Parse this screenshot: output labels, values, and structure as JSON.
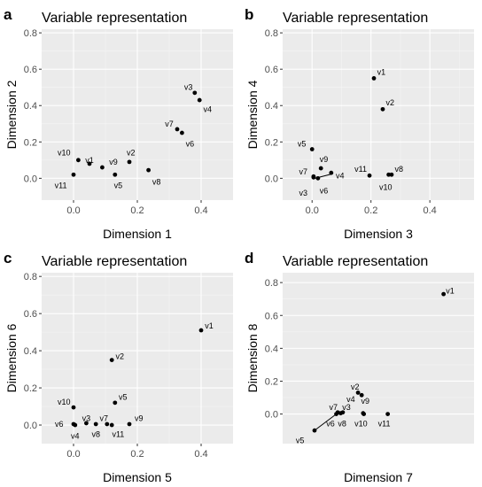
{
  "chart_data": [
    {
      "type": "scatter",
      "letter": "a",
      "title": "Variable representation",
      "xlabel": "Dimension 1",
      "ylabel": "Dimension 2",
      "xlim": [
        -0.1,
        0.5
      ],
      "ylim": [
        -0.12,
        0.82
      ],
      "xticks": [
        0.0,
        0.2,
        0.4
      ],
      "xtick_labels": [
        "0.0",
        "0.2",
        "0.4"
      ],
      "yticks": [
        0.0,
        0.2,
        0.4,
        0.6,
        0.8
      ],
      "ytick_labels": [
        "0.0",
        "0.2",
        "0.4",
        "0.6",
        "0.8"
      ],
      "grid": true,
      "points": [
        {
          "label": "v1",
          "x": 0.05,
          "y": 0.08,
          "lx": 0.05,
          "ly": 0.1
        },
        {
          "label": "v2",
          "x": 0.175,
          "y": 0.09,
          "lx": 0.18,
          "ly": 0.14
        },
        {
          "label": "v3",
          "x": 0.38,
          "y": 0.47,
          "lx": 0.36,
          "ly": 0.5
        },
        {
          "label": "v4",
          "x": 0.395,
          "y": 0.43,
          "lx": 0.42,
          "ly": 0.38
        },
        {
          "label": "v5",
          "x": 0.13,
          "y": 0.02,
          "lx": 0.14,
          "ly": -0.04
        },
        {
          "label": "v6",
          "x": 0.34,
          "y": 0.25,
          "lx": 0.365,
          "ly": 0.19
        },
        {
          "label": "v7",
          "x": 0.325,
          "y": 0.27,
          "lx": 0.3,
          "ly": 0.3
        },
        {
          "label": "v8",
          "x": 0.235,
          "y": 0.045,
          "lx": 0.26,
          "ly": -0.02
        },
        {
          "label": "v9",
          "x": 0.09,
          "y": 0.06,
          "lx": 0.125,
          "ly": 0.09
        },
        {
          "label": "v10",
          "x": 0.015,
          "y": 0.1,
          "lx": -0.03,
          "ly": 0.14
        },
        {
          "label": "v11",
          "x": 0.0,
          "y": 0.02,
          "lx": -0.04,
          "ly": -0.04
        }
      ],
      "leaders": []
    },
    {
      "type": "scatter",
      "letter": "b",
      "title": "Variable representation",
      "xlabel": "Dimension 3",
      "ylabel": "Dimension 4",
      "xlim": [
        -0.1,
        0.55
      ],
      "ylim": [
        -0.12,
        0.82
      ],
      "xticks": [
        0.0,
        0.2,
        0.4
      ],
      "xtick_labels": [
        "0.0",
        "0.2",
        "0.4"
      ],
      "yticks": [
        0.0,
        0.2,
        0.4,
        0.6,
        0.8
      ],
      "ytick_labels": [
        "0.0",
        "0.2",
        "0.4",
        "0.6",
        "0.8"
      ],
      "grid": true,
      "points": [
        {
          "label": "v1",
          "x": 0.21,
          "y": 0.55,
          "lx": 0.235,
          "ly": 0.585
        },
        {
          "label": "v2",
          "x": 0.24,
          "y": 0.38,
          "lx": 0.265,
          "ly": 0.415
        },
        {
          "label": "v3",
          "x": 0.005,
          "y": 0.005,
          "lx": -0.03,
          "ly": -0.08
        },
        {
          "label": "v4",
          "x": 0.065,
          "y": 0.03,
          "lx": 0.095,
          "ly": 0.015
        },
        {
          "label": "v5",
          "x": 0.0,
          "y": 0.16,
          "lx": -0.035,
          "ly": 0.19
        },
        {
          "label": "v6",
          "x": 0.02,
          "y": 0.0,
          "lx": 0.04,
          "ly": -0.07
        },
        {
          "label": "v7",
          "x": 0.005,
          "y": 0.01,
          "lx": -0.03,
          "ly": 0.035
        },
        {
          "label": "v8",
          "x": 0.27,
          "y": 0.02,
          "lx": 0.295,
          "ly": 0.05
        },
        {
          "label": "v9",
          "x": 0.03,
          "y": 0.055,
          "lx": 0.04,
          "ly": 0.105
        },
        {
          "label": "v10",
          "x": 0.26,
          "y": 0.02,
          "lx": 0.25,
          "ly": -0.05
        },
        {
          "label": "v11",
          "x": 0.195,
          "y": 0.015,
          "lx": 0.165,
          "ly": 0.05
        }
      ],
      "leaders": [
        {
          "x1": 0.01,
          "y1": 0.0,
          "x2": 0.07,
          "y2": 0.025
        }
      ]
    },
    {
      "type": "scatter",
      "letter": "c",
      "title": "Variable representation",
      "xlabel": "Dimension 5",
      "ylabel": "Dimension 6",
      "xlim": [
        -0.1,
        0.5
      ],
      "ylim": [
        -0.1,
        0.82
      ],
      "xticks": [
        0.0,
        0.2,
        0.4
      ],
      "xtick_labels": [
        "0.0",
        "0.2",
        "0.4"
      ],
      "yticks": [
        0.0,
        0.2,
        0.4,
        0.6,
        0.8
      ],
      "ytick_labels": [
        "0.0",
        "0.2",
        "0.4",
        "0.6",
        "0.8"
      ],
      "grid": true,
      "points": [
        {
          "label": "v1",
          "x": 0.4,
          "y": 0.51,
          "lx": 0.425,
          "ly": 0.535
        },
        {
          "label": "v2",
          "x": 0.12,
          "y": 0.35,
          "lx": 0.145,
          "ly": 0.37
        },
        {
          "label": "v3",
          "x": 0.04,
          "y": 0.01,
          "lx": 0.04,
          "ly": 0.035
        },
        {
          "label": "v4",
          "x": 0.005,
          "y": 0.0,
          "lx": 0.005,
          "ly": -0.06
        },
        {
          "label": "v5",
          "x": 0.13,
          "y": 0.12,
          "lx": 0.155,
          "ly": 0.15
        },
        {
          "label": "v6",
          "x": 0.0,
          "y": 0.005,
          "lx": -0.045,
          "ly": 0.005
        },
        {
          "label": "v7",
          "x": 0.105,
          "y": 0.005,
          "lx": 0.095,
          "ly": 0.035
        },
        {
          "label": "v8",
          "x": 0.07,
          "y": 0.005,
          "lx": 0.07,
          "ly": -0.05
        },
        {
          "label": "v9",
          "x": 0.175,
          "y": 0.005,
          "lx": 0.205,
          "ly": 0.035
        },
        {
          "label": "v10",
          "x": 0.0,
          "y": 0.095,
          "lx": -0.03,
          "ly": 0.125
        },
        {
          "label": "v11",
          "x": 0.12,
          "y": 0.0,
          "lx": 0.14,
          "ly": -0.05
        }
      ],
      "leaders": []
    },
    {
      "type": "scatter",
      "letter": "d",
      "title": "Variable representation",
      "xlabel": "Dimension 7",
      "ylabel": "Dimension 8",
      "xlim": [
        -0.37,
        0.95
      ],
      "ylim": [
        -0.18,
        0.86
      ],
      "xticks": [],
      "xtick_labels": [],
      "yticks": [
        0.0,
        0.2,
        0.4,
        0.6,
        0.8
      ],
      "ytick_labels": [
        "0.0",
        "0.2",
        "0.4",
        "0.6",
        "0.8"
      ],
      "grid": true,
      "points": [
        {
          "label": "v1",
          "x": 0.74,
          "y": 0.73,
          "lx": 0.785,
          "ly": 0.75
        },
        {
          "label": "v2",
          "x": 0.15,
          "y": 0.13,
          "lx": 0.13,
          "ly": 0.165
        },
        {
          "label": "v3",
          "x": 0.045,
          "y": 0.01,
          "lx": 0.07,
          "ly": 0.04
        },
        {
          "label": "v4",
          "x": 0.175,
          "y": 0.115,
          "lx": 0.1,
          "ly": 0.09
        },
        {
          "label": "v5",
          "x": -0.15,
          "y": -0.1,
          "lx": -0.25,
          "ly": -0.16
        },
        {
          "label": "v6",
          "x": 0.0,
          "y": 0.0,
          "lx": -0.04,
          "ly": -0.06
        },
        {
          "label": "v7",
          "x": 0.01,
          "y": 0.01,
          "lx": -0.02,
          "ly": 0.04
        },
        {
          "label": "v8",
          "x": 0.03,
          "y": 0.005,
          "lx": 0.04,
          "ly": -0.06
        },
        {
          "label": "v9",
          "x": 0.185,
          "y": 0.005,
          "lx": 0.2,
          "ly": 0.08
        },
        {
          "label": "v10",
          "x": 0.19,
          "y": 0.0,
          "lx": 0.17,
          "ly": -0.06
        },
        {
          "label": "v11",
          "x": 0.355,
          "y": 0.0,
          "lx": 0.33,
          "ly": -0.06
        }
      ],
      "leaders": [
        {
          "x1": -0.15,
          "y1": -0.1,
          "x2": 0.0,
          "y2": 0.0
        }
      ]
    }
  ]
}
